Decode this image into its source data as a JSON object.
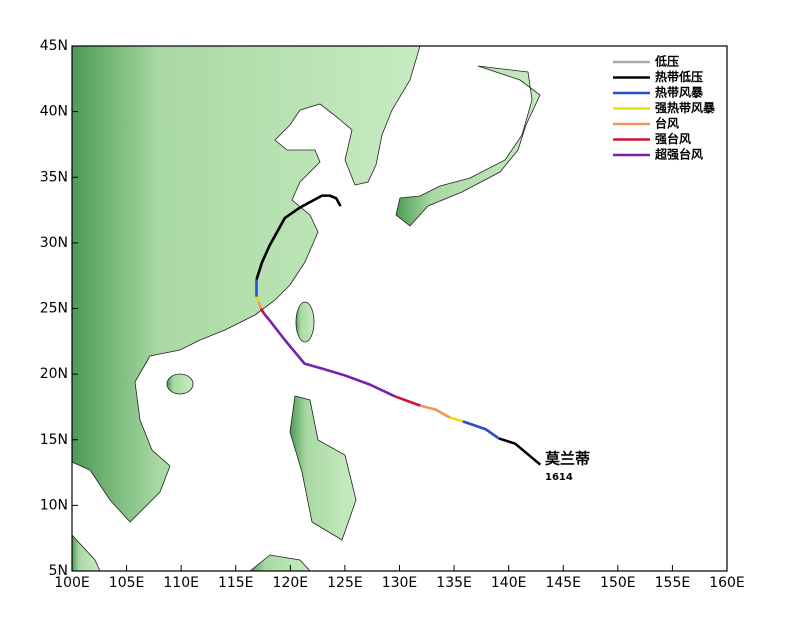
{
  "map": {
    "xlim": [
      100,
      160
    ],
    "ylim": [
      5,
      45
    ],
    "xticks": [
      {
        "value": 100,
        "label": "100E"
      },
      {
        "value": 105,
        "label": "105E"
      },
      {
        "value": 110,
        "label": "110E"
      },
      {
        "value": 115,
        "label": "115E"
      },
      {
        "value": 120,
        "label": "120E"
      },
      {
        "value": 125,
        "label": "125E"
      },
      {
        "value": 130,
        "label": "130E"
      },
      {
        "value": 135,
        "label": "135E"
      },
      {
        "value": 140,
        "label": "140E"
      },
      {
        "value": 145,
        "label": "145E"
      },
      {
        "value": 150,
        "label": "150E"
      },
      {
        "value": 155,
        "label": "155E"
      },
      {
        "value": 160,
        "label": "160E"
      }
    ],
    "yticks": [
      {
        "value": 5,
        "label": "5N"
      },
      {
        "value": 10,
        "label": "10N"
      },
      {
        "value": 15,
        "label": "15N"
      },
      {
        "value": 20,
        "label": "20N"
      },
      {
        "value": 25,
        "label": "25N"
      },
      {
        "value": 30,
        "label": "30N"
      },
      {
        "value": 35,
        "label": "35N"
      },
      {
        "value": 40,
        "label": "40N"
      },
      {
        "value": 45,
        "label": "45N"
      }
    ],
    "legend": [
      {
        "label": "低压",
        "color": "#aaaaaa"
      },
      {
        "label": "热带低压",
        "color": "#000000"
      },
      {
        "label": "热带风暴",
        "color": "#2b4ad6"
      },
      {
        "label": "强热带风暴",
        "color": "#e8e000"
      },
      {
        "label": "台风",
        "color": "#f0965a"
      },
      {
        "label": "强台风",
        "color": "#d0103a"
      },
      {
        "label": "超强台风",
        "color": "#7a1fb0"
      }
    ],
    "storm_name": "莫兰蒂",
    "storm_id": "1614",
    "track": [
      {
        "color": "#000000",
        "points": [
          [
            142.9,
            13.1
          ],
          [
            140.6,
            14.7
          ],
          [
            139.1,
            15.1
          ]
        ]
      },
      {
        "color": "#2b4ad6",
        "points": [
          [
            139.1,
            15.1
          ],
          [
            137.9,
            15.8
          ],
          [
            135.8,
            16.4
          ]
        ]
      },
      {
        "color": "#e8e000",
        "points": [
          [
            135.8,
            16.4
          ],
          [
            134.6,
            16.7
          ]
        ]
      },
      {
        "color": "#f0965a",
        "points": [
          [
            134.6,
            16.7
          ],
          [
            133.3,
            17.3
          ],
          [
            131.9,
            17.6
          ]
        ]
      },
      {
        "color": "#d0103a",
        "points": [
          [
            131.9,
            17.6
          ],
          [
            129.6,
            18.3
          ]
        ]
      },
      {
        "color": "#7a1fb0",
        "points": [
          [
            129.6,
            18.3
          ],
          [
            127.3,
            19.2
          ],
          [
            125.0,
            19.9
          ],
          [
            123.0,
            20.4
          ],
          [
            121.3,
            20.8
          ],
          [
            120.7,
            21.4
          ],
          [
            119.5,
            22.6
          ],
          [
            118.1,
            24.1
          ],
          [
            117.6,
            24.6
          ]
        ]
      },
      {
        "color": "#d0103a",
        "points": [
          [
            117.6,
            24.6
          ],
          [
            117.3,
            25.0
          ]
        ]
      },
      {
        "color": "#f0965a",
        "points": [
          [
            117.3,
            25.0
          ],
          [
            117.1,
            25.5
          ]
        ]
      },
      {
        "color": "#e8e000",
        "points": [
          [
            117.1,
            25.5
          ],
          [
            116.9,
            25.9
          ]
        ]
      },
      {
        "color": "#2b4ad6",
        "points": [
          [
            116.9,
            25.9
          ],
          [
            116.9,
            27.2
          ]
        ]
      },
      {
        "color": "#000000",
        "points": [
          [
            116.9,
            27.2
          ],
          [
            117.4,
            28.5
          ],
          [
            118.1,
            29.8
          ],
          [
            119.5,
            31.9
          ],
          [
            120.9,
            32.7
          ],
          [
            122.9,
            33.6
          ],
          [
            123.6,
            33.6
          ],
          [
            124.2,
            33.4
          ],
          [
            124.6,
            32.8
          ]
        ]
      }
    ]
  }
}
